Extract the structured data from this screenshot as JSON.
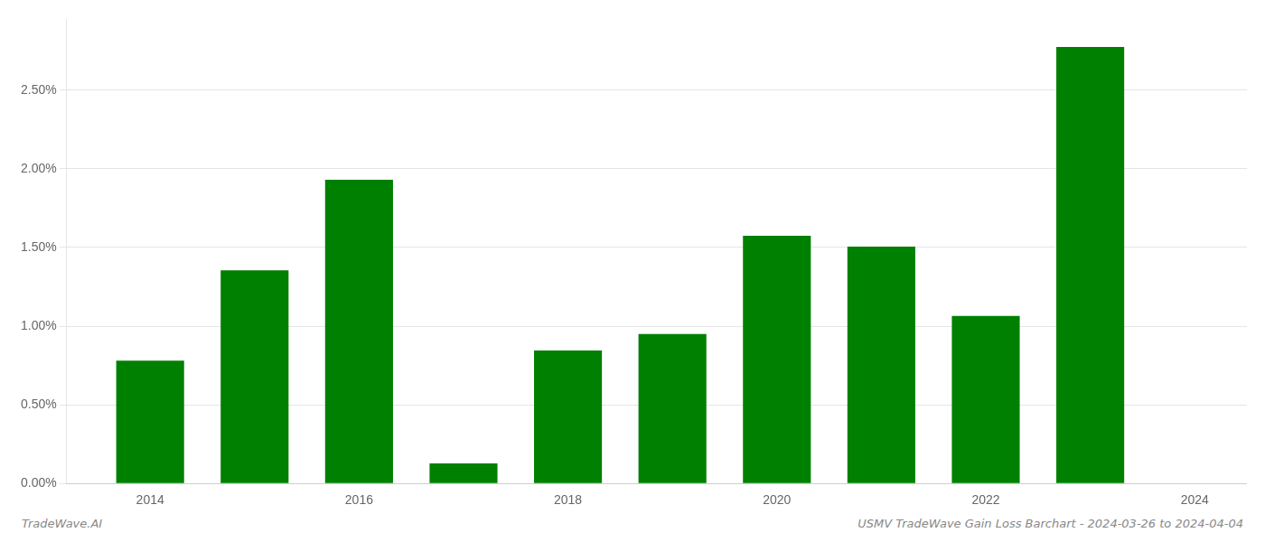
{
  "chart_data": {
    "type": "bar",
    "x": [
      2014,
      2015,
      2016,
      2017,
      2018,
      2019,
      2020,
      2021,
      2022,
      2023
    ],
    "values": [
      0.0078,
      0.01355,
      0.0193,
      0.00128,
      0.00845,
      0.0095,
      0.01575,
      0.01505,
      0.01065,
      0.02775
    ],
    "color": "#008000",
    "xlim": [
      2013.2,
      2024.5
    ],
    "xticks": [
      2014,
      2016,
      2018,
      2020,
      2022,
      2024
    ],
    "ylim": [
      0,
      0.0295
    ],
    "yticks": [
      {
        "value": 0.0,
        "label": "0.00%"
      },
      {
        "value": 0.005,
        "label": "0.50%"
      },
      {
        "value": 0.01,
        "label": "1.00%"
      },
      {
        "value": 0.015,
        "label": "1.50%"
      },
      {
        "value": 0.02,
        "label": "2.00%"
      },
      {
        "value": 0.025,
        "label": "2.50%"
      }
    ],
    "grid": "y",
    "annotations": [
      "TradeWave.AI",
      "USMV TradeWave Gain Loss Barchart - 2024-03-26 to 2024-04-04"
    ]
  }
}
